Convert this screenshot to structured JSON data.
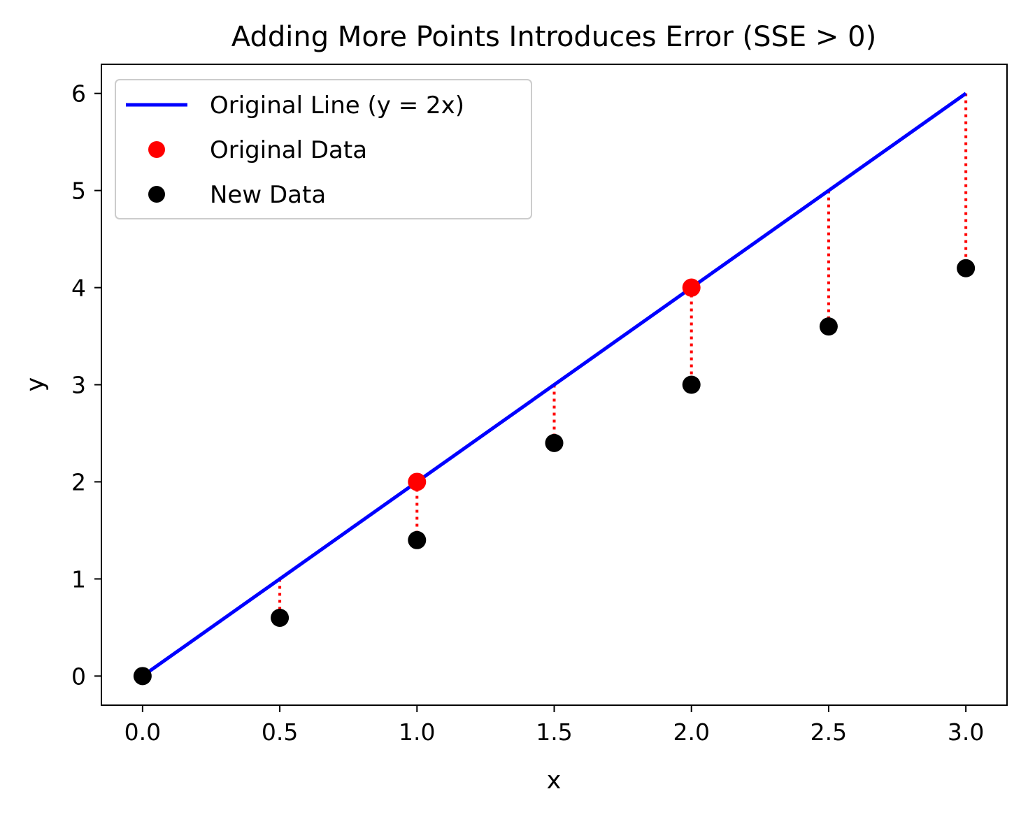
{
  "chart_data": {
    "type": "scatter",
    "title": "Adding More Points Introduces Error (SSE > 0)",
    "xlabel": "x",
    "ylabel": "y",
    "xlim": [
      -0.15,
      3.15
    ],
    "ylim": [
      -0.3,
      6.3
    ],
    "x_ticks": [
      "0.0",
      "0.5",
      "1.0",
      "1.5",
      "2.0",
      "2.5",
      "3.0"
    ],
    "y_ticks": [
      "0",
      "1",
      "2",
      "3",
      "4",
      "5",
      "6"
    ],
    "grid": false,
    "legend_position": "top-left",
    "series": [
      {
        "name": "Original Line (y = 2x)",
        "kind": "line",
        "color": "#0000ff",
        "x": [
          0,
          3
        ],
        "y": [
          0,
          6
        ]
      },
      {
        "name": "Original Data",
        "kind": "scatter",
        "color": "#ff0000",
        "x": [
          1,
          2
        ],
        "y": [
          2,
          4
        ]
      },
      {
        "name": "New Data",
        "kind": "scatter",
        "color": "#000000",
        "x": [
          0,
          0.5,
          1,
          1.5,
          2,
          2.5,
          3
        ],
        "y": [
          0,
          0.6,
          1.4,
          2.4,
          3,
          3.6,
          4.2
        ]
      }
    ],
    "residuals": {
      "color": "#ff0000",
      "style": "dotted",
      "x": [
        0,
        0.5,
        1,
        1.5,
        2,
        2.5,
        3
      ],
      "y_from": [
        0,
        1,
        2,
        3,
        4,
        5,
        6
      ],
      "y_to": [
        0,
        0.6,
        1.4,
        2.4,
        3,
        3.6,
        4.2
      ]
    }
  }
}
